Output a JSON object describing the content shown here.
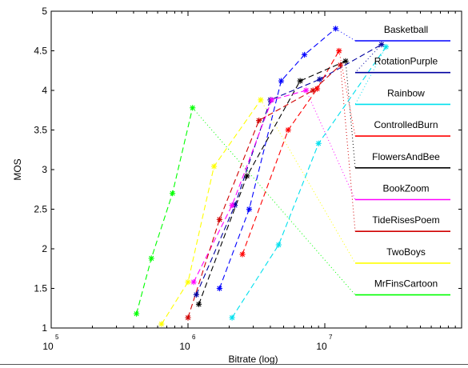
{
  "chart_data": {
    "type": "line",
    "xlabel": "Bitrate (log)",
    "ylabel": "MOS",
    "xscale": "log",
    "xlim": [
      100000,
      100000000
    ],
    "ylim": [
      1,
      5
    ],
    "x_ticks": [
      {
        "base": "10",
        "exp": "5"
      },
      {
        "base": "10",
        "exp": "6"
      },
      {
        "base": "10",
        "exp": "7"
      }
    ],
    "y_ticks": [
      "1",
      "1.5",
      "2",
      "2.5",
      "3",
      "3.5",
      "4",
      "4.5",
      "5"
    ],
    "y_tick_values": [
      1,
      1.5,
      2,
      2.5,
      3,
      3.5,
      4,
      4.5,
      5
    ],
    "grid": false,
    "legend_position": "right",
    "marker": "*",
    "series": [
      {
        "name": "Basketball",
        "color": "#0000ff",
        "x": [
          1700000,
          2800000,
          4800000,
          7100000,
          12000000
        ],
        "y": [
          1.5,
          2.5,
          4.12,
          4.45,
          4.78
        ]
      },
      {
        "name": "RotationPurple",
        "color": "#0000a0",
        "x": [
          1150000,
          2200000,
          4000000,
          9200000,
          26000000
        ],
        "y": [
          1.42,
          2.55,
          3.88,
          4.14,
          4.58
        ]
      },
      {
        "name": "Rainbow",
        "color": "#00e0ee",
        "x": [
          2100000,
          4600000,
          9000000,
          28000000
        ],
        "y": [
          1.13,
          2.05,
          3.33,
          4.55
        ]
      },
      {
        "name": "ControlledBurn",
        "color": "#ff0000",
        "x": [
          2500000,
          5400000,
          8800000,
          12700000
        ],
        "y": [
          1.93,
          3.5,
          4.02,
          4.5
        ]
      },
      {
        "name": "FlowersAndBee",
        "color": "#000000",
        "x": [
          1200000,
          2700000,
          6600000,
          14200000
        ],
        "y": [
          1.3,
          2.92,
          4.12,
          4.37
        ]
      },
      {
        "name": "BookZoom",
        "color": "#ff00ff",
        "x": [
          1100000,
          2100000,
          4100000,
          7300000
        ],
        "y": [
          1.58,
          2.55,
          3.88,
          4.0
        ]
      },
      {
        "name": "TideRisesPoem",
        "color": "#d00000",
        "x": [
          1000000,
          1700000,
          3300000,
          8200000,
          13000000
        ],
        "y": [
          1.13,
          2.37,
          3.62,
          4.0,
          4.32
        ]
      },
      {
        "name": "TwoBoys",
        "color": "#ffff00",
        "x": [
          640000,
          1000000,
          1550000,
          3400000
        ],
        "y": [
          1.05,
          1.58,
          3.04,
          3.88
        ]
      },
      {
        "name": "MrFinsCartoon",
        "color": "#00ff00",
        "x": [
          420000,
          540000,
          770000,
          1080000
        ],
        "y": [
          1.18,
          1.88,
          2.7,
          3.78
        ]
      }
    ]
  }
}
